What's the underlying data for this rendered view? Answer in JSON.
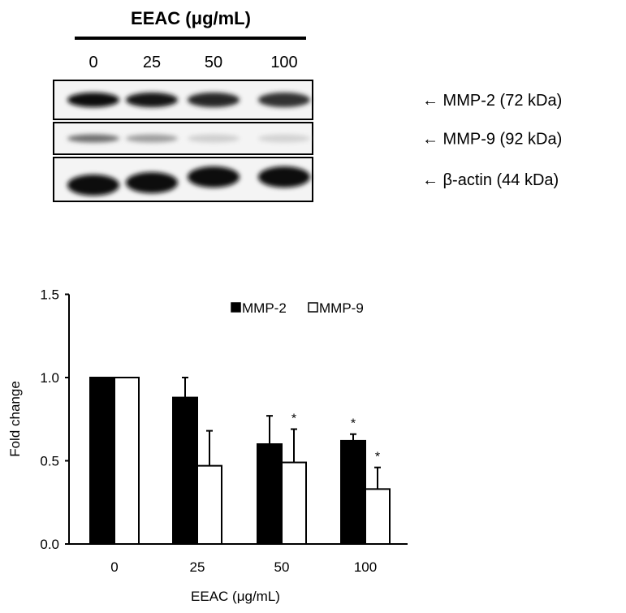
{
  "blot": {
    "title": "EEAC (μg/mL)",
    "lanes": [
      "0",
      "25",
      "50",
      "100"
    ],
    "rows": [
      {
        "label": "← MMP-2 (72 kDa)",
        "intensity": [
          1.0,
          0.95,
          0.9,
          0.85
        ]
      },
      {
        "label": "← MMP-9 (92 kDa)",
        "intensity": [
          0.6,
          0.4,
          0.2,
          0.18
        ]
      },
      {
        "label": "← β-actin (44 kDa)",
        "intensity": [
          1.0,
          1.0,
          1.0,
          1.0
        ]
      }
    ]
  },
  "chart_data": {
    "type": "bar",
    "categories": [
      "0",
      "25",
      "50",
      "100"
    ],
    "series": [
      {
        "name": "MMP-2",
        "color": "#000000",
        "values": [
          1.0,
          0.88,
          0.6,
          0.62
        ],
        "error": [
          0,
          0.12,
          0.17,
          0.04
        ],
        "significant": [
          false,
          false,
          false,
          true
        ]
      },
      {
        "name": "MMP-9",
        "color": "#ffffff",
        "values": [
          1.0,
          0.47,
          0.49,
          0.33
        ],
        "error": [
          0,
          0.21,
          0.2,
          0.13
        ],
        "significant": [
          false,
          false,
          true,
          true
        ]
      }
    ],
    "xlabel": "EEAC (μg/mL)",
    "ylabel": "Fold change",
    "ylim": [
      0,
      1.5
    ],
    "yticks": [
      "0.0",
      "0.5",
      "1.0",
      "1.5"
    ],
    "significance_marker": "*",
    "legend": "top-right",
    "grid": false
  }
}
